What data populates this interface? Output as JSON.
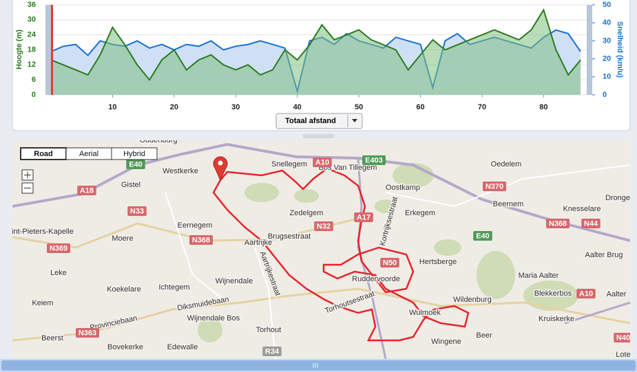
{
  "chart_data": {
    "type": "area",
    "ylabel": "Hoogte (m)",
    "y2label": "Snelheid (km/u)",
    "x": [
      0,
      2,
      4,
      6,
      8,
      10,
      12,
      14,
      16,
      18,
      20,
      22,
      24,
      26,
      28,
      30,
      32,
      34,
      36,
      38,
      40,
      42,
      44,
      46,
      48,
      50,
      52,
      54,
      56,
      58,
      60,
      62,
      64,
      66,
      68,
      70,
      72,
      74,
      76,
      78,
      80,
      82,
      84,
      86
    ],
    "series": [
      {
        "color": "#1a6fd1",
        "fill": "#cfe0f5",
        "axis": "y2",
        "values": [
          24,
          27,
          28,
          22,
          30,
          28,
          27,
          30,
          26,
          28,
          25,
          28,
          27,
          30,
          25,
          27,
          28,
          30,
          28,
          26,
          2,
          30,
          32,
          28,
          34,
          30,
          28,
          26,
          32,
          30,
          28,
          4,
          30,
          34,
          28,
          30,
          32,
          30,
          28,
          26,
          32,
          36,
          34,
          24
        ]
      },
      {
        "color": "#2a7a1f",
        "fill": "#7fbf7f",
        "values": [
          14,
          12,
          10,
          8,
          16,
          27,
          20,
          12,
          6,
          14,
          18,
          10,
          14,
          16,
          12,
          10,
          12,
          8,
          10,
          18,
          14,
          20,
          28,
          22,
          24,
          26,
          22,
          20,
          18,
          10,
          16,
          22,
          18,
          20,
          22,
          24,
          26,
          24,
          22,
          26,
          34,
          18,
          8,
          14
        ]
      }
    ],
    "xlim": [
      0,
      87
    ],
    "xticks": [
      10,
      20,
      30,
      40,
      50,
      60,
      70,
      80
    ],
    "ylim": [
      0,
      36
    ],
    "yticks": [
      0,
      6,
      12,
      18,
      24,
      30,
      36
    ],
    "y2lim": [
      0,
      50
    ],
    "y2ticks": [
      0,
      10,
      20,
      30,
      40,
      50
    ],
    "grid": true
  },
  "controls": {
    "distance_select": "Totaal afstand"
  },
  "map": {
    "types": [
      "Road",
      "Aerial",
      "Hybrid"
    ],
    "places": [
      "Oudenburg",
      "Westkerke",
      "Gistel",
      "Snellegem",
      "Zedelgem",
      "Oostkamp",
      "Oedelem",
      "Beernem",
      "Knesselare",
      "Eernegem",
      "Moere",
      "Aartrijke",
      "Erkegem",
      "Hertsberge",
      "Aalter Brug",
      "Maria Aalter",
      "Ruddervoorde",
      "Leke",
      "Koekelare",
      "Ichtegem",
      "Wijnendale",
      "Blekkerbos",
      "Aalter",
      "Wildenburg",
      "Keiem",
      "Wulmoek",
      "Kruiskerke",
      "Torhout",
      "Wijnendale Bos",
      "Beerst",
      "Bovekerke",
      "Edewalle",
      "Wingene",
      "Beer",
      "Bos Van Tillegem",
      "int-Pieters-Kapelle",
      "Dronge",
      "Lote"
    ],
    "streets": [
      "Brugsestraat",
      "Diksmuidebaan",
      "Provinciebaan",
      "Kortrijksestraat",
      "Aartrijkestraat",
      "Torhoutsestraat"
    ],
    "roads": [
      {
        "label": "E40",
        "color": "#4f9a56"
      },
      {
        "label": "A18",
        "color": "#d9666b"
      },
      {
        "label": "N33",
        "color": "#d9666b"
      },
      {
        "label": "N368",
        "color": "#d9666b"
      },
      {
        "label": "N369",
        "color": "#d9666b"
      },
      {
        "label": "N363",
        "color": "#d9666b"
      },
      {
        "label": "A10",
        "color": "#d9666b"
      },
      {
        "label": "E403",
        "color": "#4f9a56"
      },
      {
        "label": "N32",
        "color": "#d9666b"
      },
      {
        "label": "A17",
        "color": "#d9666b"
      },
      {
        "label": "N370",
        "color": "#d9666b"
      },
      {
        "label": "N368",
        "color": "#d9666b"
      },
      {
        "label": "N44",
        "color": "#d9666b"
      },
      {
        "label": "E40",
        "color": "#4f9a56"
      },
      {
        "label": "N50",
        "color": "#d9666b"
      },
      {
        "label": "A10",
        "color": "#d9666b"
      },
      {
        "label": "R34",
        "color": "#9a9a9a"
      },
      {
        "label": "N40",
        "color": "#d9666b"
      }
    ]
  }
}
